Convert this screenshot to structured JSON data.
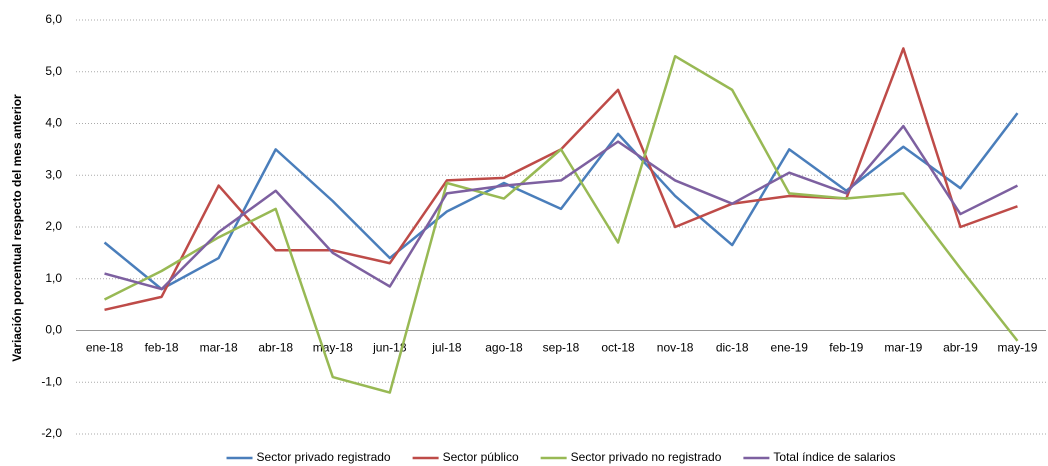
{
  "chart_data": {
    "type": "line",
    "y_label": "Variación porcentual respecto del mes anterior",
    "categories": [
      "ene-18",
      "feb-18",
      "mar-18",
      "abr-18",
      "may-18",
      "jun-18",
      "jul-18",
      "ago-18",
      "sep-18",
      "oct-18",
      "nov-18",
      "dic-18",
      "ene-19",
      "feb-19",
      "mar-19",
      "abr-19",
      "may-19"
    ],
    "series": [
      {
        "name": "Sector privado registrado",
        "color": "#4a7ebb",
        "values": [
          1.7,
          0.8,
          1.4,
          3.5,
          2.5,
          1.4,
          2.3,
          2.85,
          2.35,
          3.8,
          2.6,
          1.65,
          3.5,
          2.7,
          3.55,
          2.75,
          4.2
        ]
      },
      {
        "name": "Sector público",
        "color": "#be4b48",
        "values": [
          0.4,
          0.65,
          2.8,
          1.55,
          1.55,
          1.3,
          2.9,
          2.95,
          3.5,
          4.65,
          2.0,
          2.45,
          2.6,
          2.55,
          5.45,
          2.0,
          2.4
        ]
      },
      {
        "name": "Sector privado no registrado",
        "color": "#98b954",
        "values": [
          0.6,
          1.15,
          1.8,
          2.35,
          -0.9,
          -1.2,
          2.85,
          2.55,
          3.5,
          1.7,
          5.3,
          4.65,
          2.65,
          2.55,
          2.65,
          1.2,
          -0.2
        ]
      },
      {
        "name": "Total índice de salarios",
        "color": "#7d60a0",
        "values": [
          1.1,
          0.8,
          1.9,
          2.7,
          1.5,
          0.85,
          2.65,
          2.8,
          2.9,
          3.65,
          2.9,
          2.45,
          3.05,
          2.65,
          3.95,
          2.25,
          2.8
        ]
      }
    ],
    "ylim": [
      -2,
      6
    ],
    "yticks": [
      {
        "value": -2,
        "label": "-2,0"
      },
      {
        "value": -1,
        "label": "-1,0"
      },
      {
        "value": 0,
        "label": "0,0"
      },
      {
        "value": 1,
        "label": "1,0"
      },
      {
        "value": 2,
        "label": "2,0"
      },
      {
        "value": 3,
        "label": "3,0"
      },
      {
        "value": 4,
        "label": "4,0"
      },
      {
        "value": 5,
        "label": "5,0"
      },
      {
        "value": 6,
        "label": "6,0"
      }
    ],
    "grid": true,
    "legend": "bottom"
  }
}
